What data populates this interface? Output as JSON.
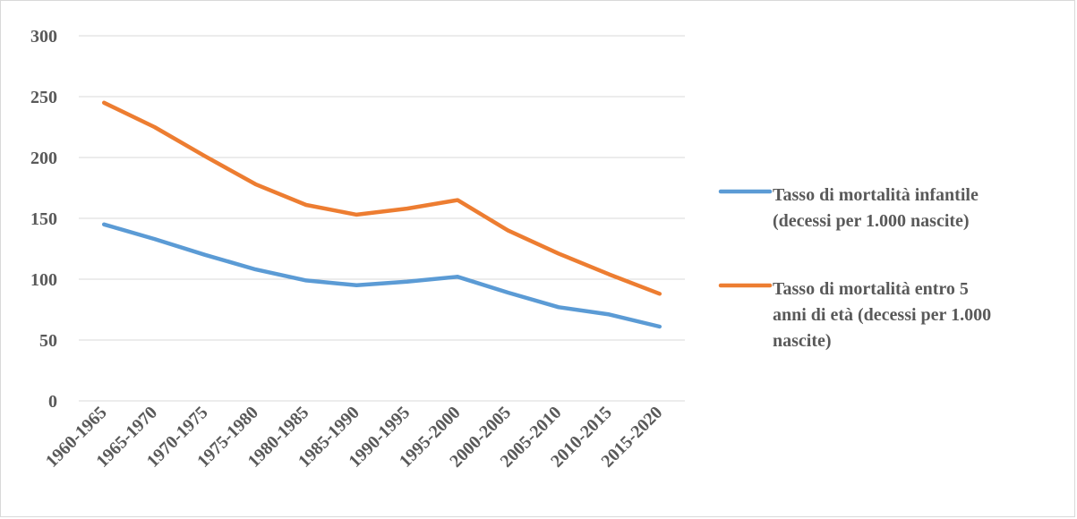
{
  "chart_data": {
    "type": "line",
    "title": "",
    "xlabel": "",
    "ylabel": "",
    "ylim": [
      0,
      300
    ],
    "yticks": [
      0,
      50,
      100,
      150,
      200,
      250,
      300
    ],
    "grid": true,
    "legend_position": "right",
    "categories": [
      "1960-1965",
      "1965-1970",
      "1970-1975",
      "1975-1980",
      "1980-1985",
      "1985-1990",
      "1990-1995",
      "1995-2000",
      "2000-2005",
      "2005-2010",
      "2010-2015",
      "2015-2020"
    ],
    "series": [
      {
        "name": "Tasso di mortalità infantile (decessi per 1.000 nascite)",
        "name_lines": [
          "Tasso di mortalità infantile",
          "(decessi per 1.000 nascite)"
        ],
        "color": "#5b9bd5",
        "values": [
          145,
          133,
          120,
          108,
          99,
          95,
          98,
          102,
          89,
          77,
          71,
          61
        ]
      },
      {
        "name": "Tasso di mortalità entro 5 anni di età (decessi per 1.000 nascite)",
        "name_lines": [
          "Tasso di mortalità entro 5",
          "anni di età (decessi per 1.000",
          "nascite)"
        ],
        "color": "#ed7d31",
        "values": [
          245,
          225,
          201,
          178,
          161,
          153,
          158,
          165,
          140,
          121,
          104,
          88
        ]
      }
    ]
  }
}
